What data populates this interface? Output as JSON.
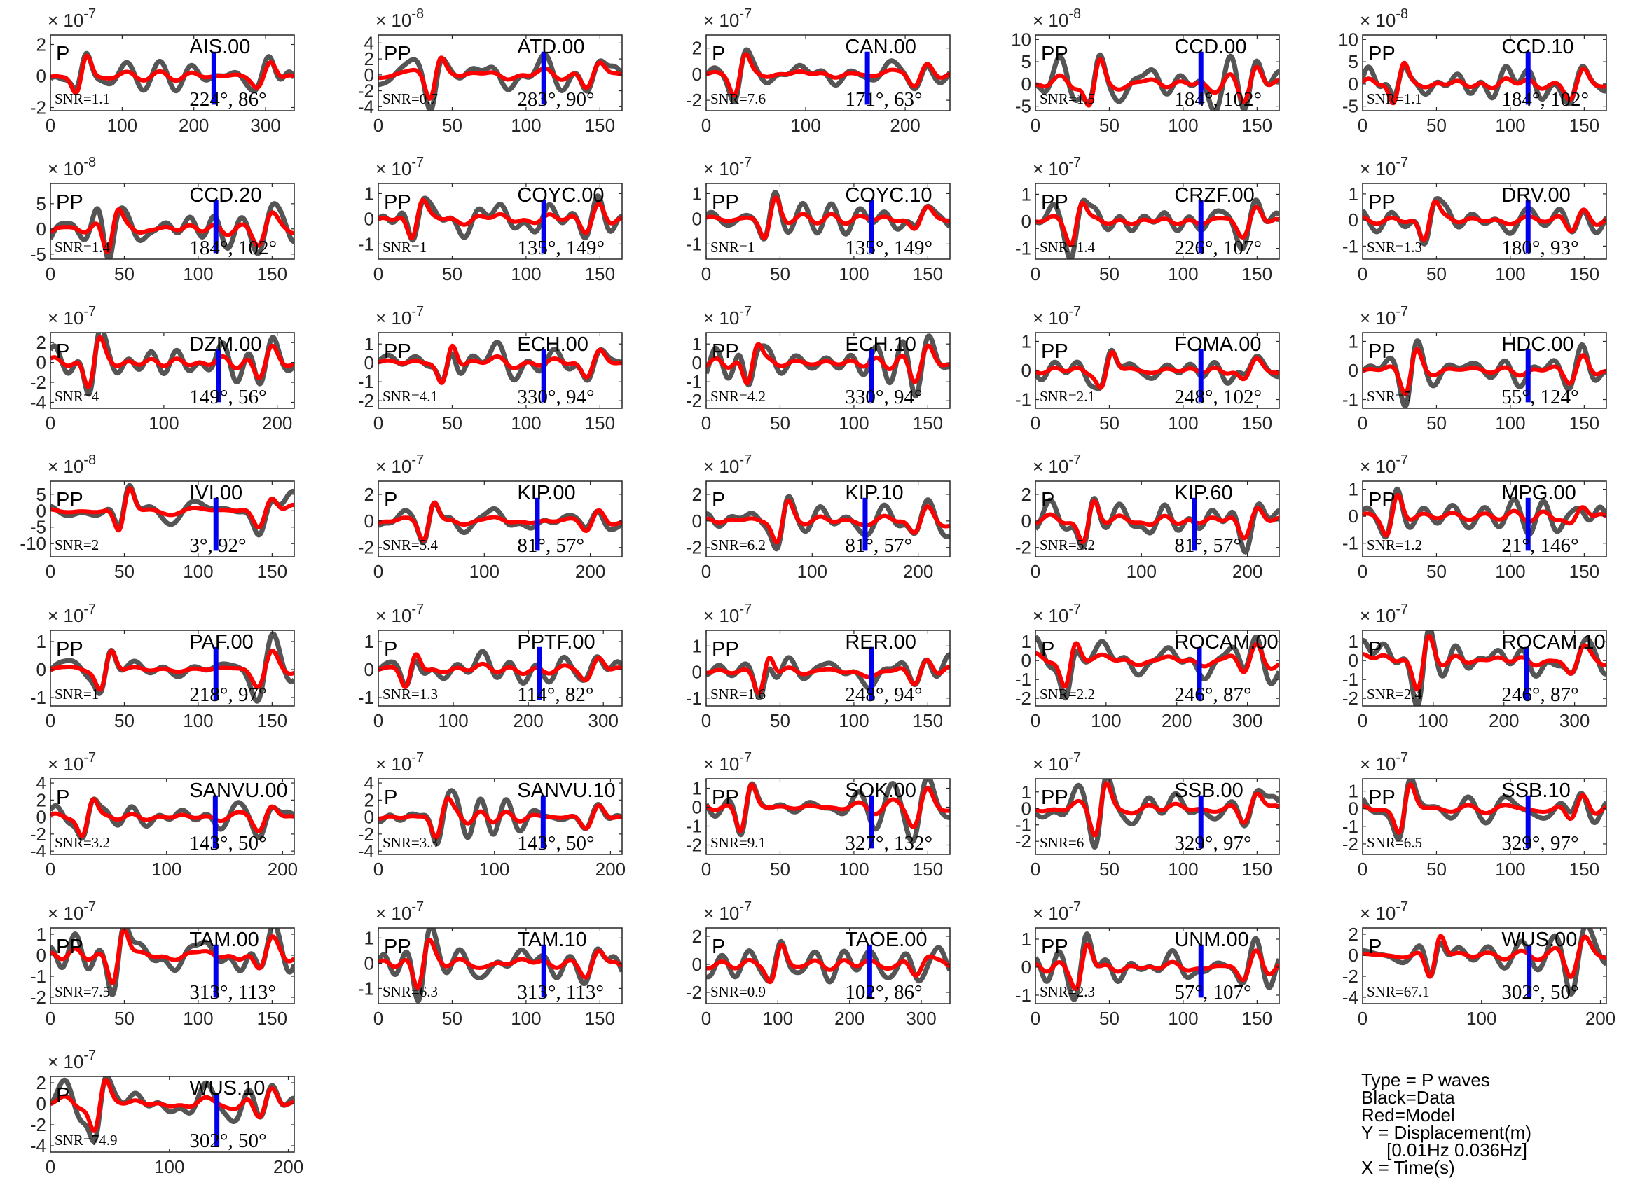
{
  "chart_data": [
    {
      "station": "AIS.00",
      "phase": "P",
      "snr": "SNR=1.1",
      "angles": "224°, 86°",
      "exponent": "-7",
      "xlim": [
        0,
        340
      ],
      "xticks": [
        0,
        100,
        200,
        300
      ],
      "ylim": [
        -2.2,
        2.6
      ],
      "yticks": [
        -2,
        0,
        2
      ],
      "marker": 228,
      "seed": 11
    },
    {
      "station": "ATD.00",
      "phase": "PP",
      "snr": "SNR=0.7",
      "angles": "283°, 90°",
      "exponent": "-8",
      "xlim": [
        0,
        165
      ],
      "xticks": [
        0,
        50,
        100,
        150
      ],
      "ylim": [
        -4.5,
        5
      ],
      "yticks": [
        -4,
        -2,
        0,
        2,
        4
      ],
      "marker": 112,
      "seed": 12
    },
    {
      "station": "CAN.00",
      "phase": "P",
      "snr": "SNR=7.6",
      "angles": "171°, 63°",
      "exponent": "-7",
      "xlim": [
        0,
        245
      ],
      "xticks": [
        0,
        100,
        200
      ],
      "ylim": [
        -2.8,
        3
      ],
      "yticks": [
        -2,
        0,
        2
      ],
      "marker": 162,
      "seed": 13
    },
    {
      "station": "CCD.00",
      "phase": "PP",
      "snr": "SNR=1.5",
      "angles": "184°, 102°",
      "exponent": "-8",
      "xlim": [
        0,
        165
      ],
      "xticks": [
        0,
        50,
        100,
        150
      ],
      "ylim": [
        -6,
        11
      ],
      "yticks": [
        -5,
        0,
        5,
        10
      ],
      "marker": 112,
      "seed": 14
    },
    {
      "station": "CCD.10",
      "phase": "PP",
      "snr": "SNR=1.1",
      "angles": "184°, 102°",
      "exponent": "-8",
      "xlim": [
        0,
        165
      ],
      "xticks": [
        0,
        50,
        100,
        150
      ],
      "ylim": [
        -6,
        11
      ],
      "yticks": [
        -5,
        0,
        5,
        10
      ],
      "marker": 112,
      "seed": 15
    },
    {
      "station": "CCD.20",
      "phase": "PP",
      "snr": "SNR=1.4",
      "angles": "184°, 102°",
      "exponent": "-8",
      "xlim": [
        0,
        165
      ],
      "xticks": [
        0,
        50,
        100,
        150
      ],
      "ylim": [
        -6,
        9
      ],
      "yticks": [
        -5,
        0,
        5
      ],
      "marker": 112,
      "seed": 16
    },
    {
      "station": "COYC.00",
      "phase": "PP",
      "snr": "SNR=1",
      "angles": "135°, 149°",
      "exponent": "-7",
      "xlim": [
        0,
        165
      ],
      "xticks": [
        0,
        50,
        100,
        150
      ],
      "ylim": [
        -1.6,
        1.4
      ],
      "yticks": [
        -1,
        0,
        1
      ],
      "marker": 112,
      "seed": 17
    },
    {
      "station": "COYC.10",
      "phase": "PP",
      "snr": "SNR=1",
      "angles": "135°, 149°",
      "exponent": "-7",
      "xlim": [
        0,
        165
      ],
      "xticks": [
        0,
        50,
        100,
        150
      ],
      "ylim": [
        -1.6,
        1.4
      ],
      "yticks": [
        -1,
        0,
        1
      ],
      "marker": 112,
      "seed": 18
    },
    {
      "station": "CRZF.00",
      "phase": "PP",
      "snr": "SNR=1.4",
      "angles": "226°, 107°",
      "exponent": "-7",
      "xlim": [
        0,
        165
      ],
      "xticks": [
        0,
        50,
        100,
        150
      ],
      "ylim": [
        -1.4,
        1.4
      ],
      "yticks": [
        -1,
        0,
        1
      ],
      "marker": 112,
      "seed": 19
    },
    {
      "station": "DRV.00",
      "phase": "PP",
      "snr": "SNR=1.3",
      "angles": "180°, 93°",
      "exponent": "-7",
      "xlim": [
        0,
        165
      ],
      "xticks": [
        0,
        50,
        100,
        150
      ],
      "ylim": [
        -1.5,
        1.4
      ],
      "yticks": [
        -1,
        0,
        1
      ],
      "marker": 112,
      "seed": 20
    },
    {
      "station": "DZM.00",
      "phase": "P",
      "snr": "SNR=4",
      "angles": "149°, 56°",
      "exponent": "-7",
      "xlim": [
        0,
        215
      ],
      "xticks": [
        0,
        100,
        200
      ],
      "ylim": [
        -4.6,
        3
      ],
      "yticks": [
        -4,
        -2,
        0,
        2
      ],
      "marker": 148,
      "seed": 21
    },
    {
      "station": "ECH.00",
      "phase": "PP",
      "snr": "SNR=4.1",
      "angles": "330°, 94°",
      "exponent": "-7",
      "xlim": [
        0,
        165
      ],
      "xticks": [
        0,
        50,
        100,
        150
      ],
      "ylim": [
        -2.4,
        1.6
      ],
      "yticks": [
        -2,
        -1,
        0,
        1
      ],
      "marker": 112,
      "seed": 22
    },
    {
      "station": "ECH.10",
      "phase": "PP",
      "snr": "SNR=4.2",
      "angles": "330°, 94°",
      "exponent": "-7",
      "xlim": [
        0,
        165
      ],
      "xticks": [
        0,
        50,
        100,
        150
      ],
      "ylim": [
        -2.4,
        1.6
      ],
      "yticks": [
        -2,
        -1,
        0,
        1
      ],
      "marker": 112,
      "seed": 23
    },
    {
      "station": "FOMA.00",
      "phase": "PP",
      "snr": "SNR=2.1",
      "angles": "248°, 102°",
      "exponent": "-7",
      "xlim": [
        0,
        165
      ],
      "xticks": [
        0,
        50,
        100,
        150
      ],
      "ylim": [
        -1.3,
        1.3
      ],
      "yticks": [
        -1,
        0,
        1
      ],
      "marker": 112,
      "seed": 24
    },
    {
      "station": "HDC.00",
      "phase": "PP",
      "snr": "SNR=5",
      "angles": "55°, 124°",
      "exponent": "-7",
      "xlim": [
        0,
        165
      ],
      "xticks": [
        0,
        50,
        100,
        150
      ],
      "ylim": [
        -1.3,
        1.3
      ],
      "yticks": [
        -1,
        0,
        1
      ],
      "marker": 112,
      "seed": 25
    },
    {
      "station": "IVI.00",
      "phase": "PP",
      "snr": "SNR=2",
      "angles": "3°, 92°",
      "exponent": "-8",
      "xlim": [
        0,
        165
      ],
      "xticks": [
        0,
        50,
        100,
        150
      ],
      "ylim": [
        -14,
        9
      ],
      "yticks": [
        -10,
        -5,
        0,
        5
      ],
      "marker": 112,
      "seed": 26
    },
    {
      "station": "KIP.00",
      "phase": "P",
      "snr": "SNR=5.4",
      "angles": "81°, 57°",
      "exponent": "-7",
      "xlim": [
        0,
        230
      ],
      "xticks": [
        0,
        100,
        200
      ],
      "ylim": [
        -2.7,
        3
      ],
      "yticks": [
        -2,
        0,
        2
      ],
      "marker": 150,
      "seed": 27
    },
    {
      "station": "KIP.10",
      "phase": "P",
      "snr": "SNR=6.2",
      "angles": "81°, 57°",
      "exponent": "-7",
      "xlim": [
        0,
        230
      ],
      "xticks": [
        0,
        100,
        200
      ],
      "ylim": [
        -2.7,
        3
      ],
      "yticks": [
        -2,
        0,
        2
      ],
      "marker": 150,
      "seed": 28
    },
    {
      "station": "KIP.60",
      "phase": "P",
      "snr": "SNR=5.2",
      "angles": "81°, 57°",
      "exponent": "-7",
      "xlim": [
        0,
        230
      ],
      "xticks": [
        0,
        100,
        200
      ],
      "ylim": [
        -2.7,
        3
      ],
      "yticks": [
        -2,
        0,
        2
      ],
      "marker": 150,
      "seed": 29
    },
    {
      "station": "MPG.00",
      "phase": "PP",
      "snr": "SNR=1.2",
      "angles": "21°, 146°",
      "exponent": "-7",
      "xlim": [
        0,
        165
      ],
      "xticks": [
        0,
        50,
        100,
        150
      ],
      "ylim": [
        -1.5,
        1.3
      ],
      "yticks": [
        -1,
        0,
        1
      ],
      "marker": 112,
      "seed": 30
    },
    {
      "station": "PAF.00",
      "phase": "PP",
      "snr": "SNR=1",
      "angles": "218°, 97°",
      "exponent": "-7",
      "xlim": [
        0,
        165
      ],
      "xticks": [
        0,
        50,
        100,
        150
      ],
      "ylim": [
        -1.3,
        1.4
      ],
      "yticks": [
        -1,
        0,
        1
      ],
      "marker": 112,
      "seed": 31
    },
    {
      "station": "PPTF.00",
      "phase": "P",
      "snr": "SNR=1.3",
      "angles": "114°, 82°",
      "exponent": "-7",
      "xlim": [
        0,
        325
      ],
      "xticks": [
        0,
        100,
        200,
        300
      ],
      "ylim": [
        -1.3,
        1.4
      ],
      "yticks": [
        -1,
        0,
        1
      ],
      "marker": 215,
      "seed": 32
    },
    {
      "station": "RER.00",
      "phase": "PP",
      "snr": "SNR=1.6",
      "angles": "248°, 94°",
      "exponent": "-7",
      "xlim": [
        0,
        165
      ],
      "xticks": [
        0,
        50,
        100,
        150
      ],
      "ylim": [
        -1.3,
        1.6
      ],
      "yticks": [
        -1,
        0,
        1
      ],
      "marker": 112,
      "seed": 33
    },
    {
      "station": "ROCAM.00",
      "phase": "P",
      "snr": "SNR=2.2",
      "angles": "246°, 87°",
      "exponent": "-7",
      "xlim": [
        0,
        345
      ],
      "xticks": [
        0,
        100,
        200,
        300
      ],
      "ylim": [
        -2.4,
        1.6
      ],
      "yticks": [
        -2,
        -1,
        0,
        1
      ],
      "marker": 232,
      "seed": 34
    },
    {
      "station": "ROCAM.10",
      "phase": "P",
      "snr": "SNR=2.4",
      "angles": "246°, 87°",
      "exponent": "-7",
      "xlim": [
        0,
        345
      ],
      "xticks": [
        0,
        100,
        200,
        300
      ],
      "ylim": [
        -2.4,
        1.6
      ],
      "yticks": [
        -2,
        -1,
        0,
        1
      ],
      "marker": 232,
      "seed": 35
    },
    {
      "station": "SANVU.00",
      "phase": "P",
      "snr": "SNR=3.2",
      "angles": "143°, 50°",
      "exponent": "-7",
      "xlim": [
        0,
        210
      ],
      "xticks": [
        0,
        100,
        200
      ],
      "ylim": [
        -4.4,
        4.5
      ],
      "yticks": [
        -4,
        -2,
        0,
        2,
        4
      ],
      "marker": 142,
      "seed": 36
    },
    {
      "station": "SANVU.10",
      "phase": "P",
      "snr": "SNR=3.3",
      "angles": "143°, 50°",
      "exponent": "-7",
      "xlim": [
        0,
        210
      ],
      "xticks": [
        0,
        100,
        200
      ],
      "ylim": [
        -4.4,
        4.5
      ],
      "yticks": [
        -4,
        -2,
        0,
        2,
        4
      ],
      "marker": 142,
      "seed": 37
    },
    {
      "station": "SOK.00",
      "phase": "PP",
      "snr": "SNR=9.1",
      "angles": "327°, 132°",
      "exponent": "-7",
      "xlim": [
        0,
        165
      ],
      "xticks": [
        0,
        50,
        100,
        150
      ],
      "ylim": [
        -2.5,
        1.5
      ],
      "yticks": [
        -2,
        -1,
        0,
        1
      ],
      "marker": 112,
      "seed": 38
    },
    {
      "station": "SSB.00",
      "phase": "PP",
      "snr": "SNR=6",
      "angles": "329°, 97°",
      "exponent": "-7",
      "xlim": [
        0,
        165
      ],
      "xticks": [
        0,
        50,
        100,
        150
      ],
      "ylim": [
        -2.8,
        1.8
      ],
      "yticks": [
        -2,
        -1,
        0,
        1
      ],
      "marker": 112,
      "seed": 39
    },
    {
      "station": "SSB.10",
      "phase": "PP",
      "snr": "SNR=6.5",
      "angles": "329°, 97°",
      "exponent": "-7",
      "xlim": [
        0,
        165
      ],
      "xticks": [
        0,
        50,
        100,
        150
      ],
      "ylim": [
        -2.6,
        1.7
      ],
      "yticks": [
        -2,
        -1,
        0,
        1
      ],
      "marker": 112,
      "seed": 40
    },
    {
      "station": "TAM.00",
      "phase": "PP",
      "snr": "SNR=7.5",
      "angles": "313°, 113°",
      "exponent": "-7",
      "xlim": [
        0,
        165
      ],
      "xticks": [
        0,
        50,
        100,
        150
      ],
      "ylim": [
        -2.3,
        1.3
      ],
      "yticks": [
        -2,
        -1,
        0,
        1
      ],
      "marker": 112,
      "seed": 41
    },
    {
      "station": "TAM.10",
      "phase": "PP",
      "snr": "SNR=6.3",
      "angles": "313°, 113°",
      "exponent": "-7",
      "xlim": [
        0,
        165
      ],
      "xticks": [
        0,
        50,
        100,
        150
      ],
      "ylim": [
        -1.6,
        1.4
      ],
      "yticks": [
        -1,
        0,
        1
      ],
      "marker": 112,
      "seed": 42
    },
    {
      "station": "TAOE.00",
      "phase": "P",
      "snr": "SNR=0.9",
      "angles": "102°, 86°",
      "exponent": "-7",
      "xlim": [
        0,
        340
      ],
      "xticks": [
        0,
        100,
        200,
        300
      ],
      "ylim": [
        -2.8,
        2.6
      ],
      "yticks": [
        -2,
        0,
        2
      ],
      "marker": 228,
      "seed": 43
    },
    {
      "station": "UNM.00",
      "phase": "PP",
      "snr": "SNR=2.3",
      "angles": "57°, 107°",
      "exponent": "-7",
      "xlim": [
        0,
        165
      ],
      "xticks": [
        0,
        50,
        100,
        150
      ],
      "ylim": [
        -1.3,
        1.4
      ],
      "yticks": [
        -1,
        0,
        1
      ],
      "marker": 112,
      "seed": 44
    },
    {
      "station": "WUS.00",
      "phase": "P",
      "snr": "SNR=67.1",
      "angles": "302°, 50°",
      "exponent": "-7",
      "xlim": [
        0,
        205
      ],
      "xticks": [
        0,
        100,
        200
      ],
      "ylim": [
        -4.6,
        2.6
      ],
      "yticks": [
        -4,
        -2,
        0,
        2
      ],
      "marker": 140,
      "seed": 45
    },
    {
      "station": "WUS.10",
      "phase": "P",
      "snr": "SNR=74.9",
      "angles": "302°, 50°",
      "exponent": "-7",
      "xlim": [
        0,
        205
      ],
      "xticks": [
        0,
        100,
        200
      ],
      "ylim": [
        -4.6,
        2.6
      ],
      "yticks": [
        -4,
        -2,
        0,
        2
      ],
      "marker": 140,
      "seed": 46
    }
  ],
  "legend": {
    "line1": "Type = P waves",
    "line2": "Black=Data",
    "line3": "Red=Model",
    "line4": "Y = Displacement(m)",
    "line5": "     [0.01Hz 0.036Hz]",
    "line6": "X = Time(s)"
  },
  "colors": {
    "data": "#555555",
    "model": "#ff0000",
    "marker": "#0000ee",
    "axes": "#262626"
  }
}
